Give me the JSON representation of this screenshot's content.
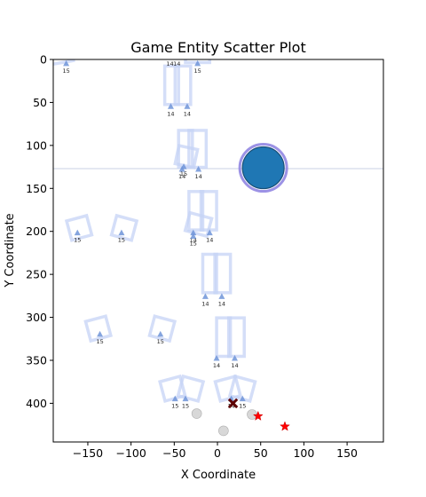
{
  "chart_data": {
    "type": "scatter",
    "title": "Game Entity Scatter Plot",
    "xlabel": "X Coordinate",
    "ylabel": "Y Coordinate",
    "xlim": [
      -190,
      192
    ],
    "ylim": [
      445,
      0
    ],
    "y_inverted": true,
    "grid": false,
    "x_ticks": [
      -150,
      -100,
      -50,
      0,
      50,
      100,
      150
    ],
    "y_ticks": [
      0,
      50,
      100,
      150,
      200,
      250,
      300,
      350,
      400
    ],
    "reference_line": {
      "y": 127,
      "color": "#c8d2e6"
    },
    "colors": {
      "structure": "#c6d3f5",
      "marker": "#6e94d8",
      "player_fill": "#1f77b4",
      "player_ring": "#8b7fe0",
      "enemy": "#cc0000",
      "crate": "#5c0000",
      "orb": "#c8c8c8"
    },
    "player": {
      "x": 53,
      "y": 126
    },
    "structures": [
      {
        "kind": "rect",
        "x": -40,
        "y": 30,
        "w": 18,
        "h": 50,
        "angle": 0
      },
      {
        "kind": "rect",
        "x": -53,
        "y": 30,
        "w": 16,
        "h": 50,
        "angle": 0
      },
      {
        "kind": "rect",
        "x": -23,
        "y": 104,
        "w": 20,
        "h": 48,
        "angle": 0
      },
      {
        "kind": "rect",
        "x": -37,
        "y": 104,
        "w": 16,
        "h": 48,
        "angle": 0
      },
      {
        "kind": "rect",
        "x": -36,
        "y": 113,
        "w": 22,
        "h": 24,
        "angle": 12
      },
      {
        "kind": "rect",
        "x": -10,
        "y": 176,
        "w": 18,
        "h": 50,
        "angle": 0
      },
      {
        "kind": "rect",
        "x": -25,
        "y": 176,
        "w": 16,
        "h": 50,
        "angle": 0
      },
      {
        "kind": "rect",
        "x": -22,
        "y": 192,
        "w": 26,
        "h": 24,
        "angle": 15
      },
      {
        "kind": "rect",
        "x": -160,
        "y": 196,
        "w": 24,
        "h": 26,
        "angle": -15
      },
      {
        "kind": "rect",
        "x": -108,
        "y": 196,
        "w": 24,
        "h": 26,
        "angle": 15
      },
      {
        "kind": "rect",
        "x": 6,
        "y": 249,
        "w": 18,
        "h": 50,
        "angle": 0
      },
      {
        "kind": "rect",
        "x": -9,
        "y": 249,
        "w": 16,
        "h": 50,
        "angle": 0
      },
      {
        "kind": "rect",
        "x": -138,
        "y": 313,
        "w": 24,
        "h": 26,
        "angle": -15
      },
      {
        "kind": "rect",
        "x": -64,
        "y": 313,
        "w": 24,
        "h": 26,
        "angle": 15
      },
      {
        "kind": "rect",
        "x": 22,
        "y": 323,
        "w": 18,
        "h": 50,
        "angle": 0
      },
      {
        "kind": "rect",
        "x": 7,
        "y": 323,
        "w": 16,
        "h": 50,
        "angle": 0
      },
      {
        "kind": "rect",
        "x": -52,
        "y": 383,
        "w": 24,
        "h": 26,
        "angle": -15
      },
      {
        "kind": "rect",
        "x": -31,
        "y": 383,
        "w": 24,
        "h": 26,
        "angle": 15
      },
      {
        "kind": "rect",
        "x": 12,
        "y": 383,
        "w": 24,
        "h": 26,
        "angle": -15
      },
      {
        "kind": "rect",
        "x": 29,
        "y": 383,
        "w": 24,
        "h": 26,
        "angle": 15
      },
      {
        "kind": "rect",
        "x": -180,
        "y": 0,
        "w": 26,
        "h": 8,
        "angle": -10
      },
      {
        "kind": "rect",
        "x": -23,
        "y": 0,
        "w": 28,
        "h": 8,
        "angle": 0
      }
    ],
    "markers": [
      {
        "x": -175,
        "y": 5,
        "label": "15"
      },
      {
        "x": -55,
        "y": -3,
        "label": "14"
      },
      {
        "x": -47,
        "y": -3,
        "label": "14"
      },
      {
        "x": -23,
        "y": 5,
        "label": "15"
      },
      {
        "x": -54,
        "y": 55,
        "label": "14"
      },
      {
        "x": -35,
        "y": 55,
        "label": "14"
      },
      {
        "x": -41,
        "y": 128,
        "label": "14"
      },
      {
        "x": -39,
        "y": 125,
        "label": "15"
      },
      {
        "x": -22,
        "y": 128,
        "label": "14"
      },
      {
        "x": -162,
        "y": 202,
        "label": "15"
      },
      {
        "x": -111,
        "y": 202,
        "label": "15"
      },
      {
        "x": -28,
        "y": 202,
        "label": "14"
      },
      {
        "x": -28,
        "y": 206,
        "label": "15"
      },
      {
        "x": -9,
        "y": 202,
        "label": "14"
      },
      {
        "x": -14,
        "y": 276,
        "label": "14"
      },
      {
        "x": 5,
        "y": 276,
        "label": "14"
      },
      {
        "x": -136,
        "y": 320,
        "label": "15"
      },
      {
        "x": -66,
        "y": 320,
        "label": "15"
      },
      {
        "x": -1,
        "y": 348,
        "label": "14"
      },
      {
        "x": 20,
        "y": 348,
        "label": "14"
      },
      {
        "x": -49,
        "y": 395,
        "label": "15"
      },
      {
        "x": -37,
        "y": 395,
        "label": "15"
      },
      {
        "x": 16,
        "y": 395,
        "label": "14"
      },
      {
        "x": 29,
        "y": 395,
        "label": "15"
      }
    ],
    "orbs": [
      {
        "x": -24,
        "y": 412
      },
      {
        "x": 7,
        "y": 432
      },
      {
        "x": 40,
        "y": 413
      }
    ],
    "enemies": [
      {
        "x": 47,
        "y": 415
      },
      {
        "x": 78,
        "y": 427
      }
    ],
    "crate": {
      "x": 18,
      "y": 400
    }
  }
}
